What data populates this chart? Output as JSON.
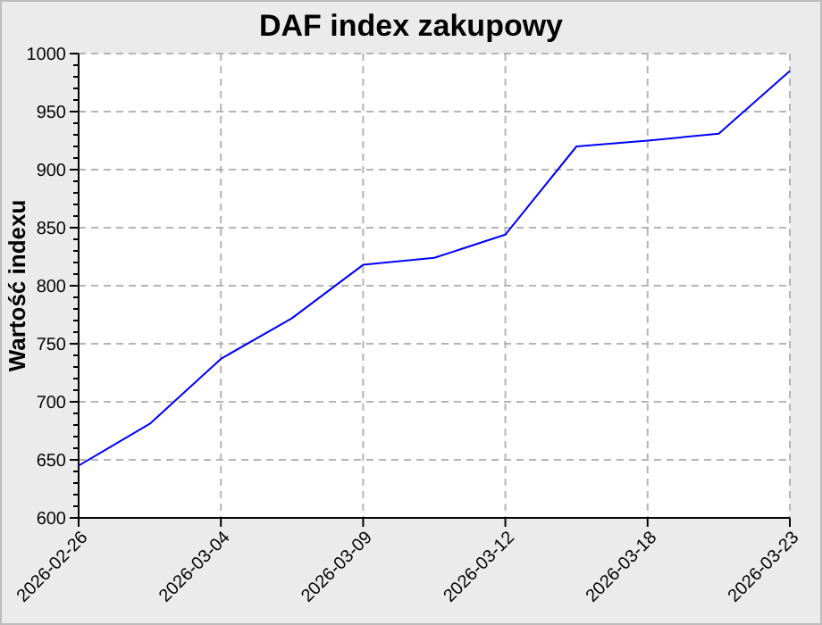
{
  "chart_data": {
    "type": "line",
    "title": "DAF index zakupowy",
    "ylabel": "Wartość indexu",
    "categories": [
      "2026-02-26",
      null,
      "2026-03-04",
      null,
      "2026-03-09",
      null,
      "2026-03-12",
      null,
      "2026-03-18",
      null,
      "2026-03-23"
    ],
    "series": [
      {
        "color": "#0000ff",
        "values": [
          645,
          681,
          737,
          772,
          818,
          824,
          844,
          920,
          925,
          931,
          985
        ]
      }
    ],
    "ylim": [
      600,
      1000
    ],
    "yticks": [
      600,
      650,
      700,
      750,
      800,
      850,
      900,
      950,
      1000
    ],
    "grid": true,
    "marker": "none",
    "line_style": "solid"
  }
}
